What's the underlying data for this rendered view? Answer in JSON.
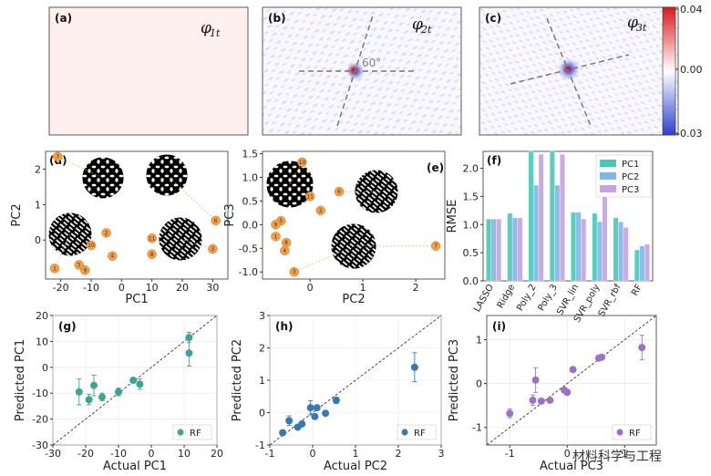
{
  "heatmaps": {
    "panels": [
      {
        "label": "(a)",
        "symbol": "φ",
        "sub": "1t"
      },
      {
        "label": "(b)",
        "symbol": "φ",
        "sub": "2t",
        "angle_label": "60°"
      },
      {
        "label": "(c)",
        "symbol": "φ",
        "sub": "3t"
      }
    ],
    "colorbar": {
      "max": "0.04",
      "mid": "0.00",
      "min": "-0.03",
      "colors": [
        "#d7191c",
        "#ffffff",
        "#2c3ecf"
      ]
    }
  },
  "chart_data": [
    {
      "id": "d",
      "type": "scatter",
      "label": "(d)",
      "xlabel": "PC1",
      "ylabel": "PC2",
      "xlim": [
        -25,
        35
      ],
      "ylim": [
        -1.1,
        2.5
      ],
      "xticks": [
        "-20",
        "-10",
        "0",
        "10",
        "20",
        "30"
      ],
      "yticks": [
        "2",
        "1",
        "0"
      ],
      "points": [
        {
          "id": "7",
          "x": -21,
          "y": 2.35
        },
        {
          "id": "6",
          "x": 31,
          "y": 0.55
        },
        {
          "id": "2",
          "x": -5,
          "y": 0.2
        },
        {
          "id": "10",
          "x": -10,
          "y": -0.15
        },
        {
          "id": "11",
          "x": 10,
          "y": 0.05
        },
        {
          "id": "3",
          "x": 30,
          "y": -0.25
        },
        {
          "id": "4",
          "x": -3,
          "y": -0.45
        },
        {
          "id": "8",
          "x": 10,
          "y": -0.4
        },
        {
          "id": "1",
          "x": -22,
          "y": -0.8
        },
        {
          "id": "5",
          "x": -14,
          "y": -0.7
        },
        {
          "id": "9",
          "x": -12,
          "y": -0.85
        }
      ]
    },
    {
      "id": "e",
      "type": "scatter",
      "label": "(e)",
      "xlabel": "PC2",
      "ylabel": "PC3",
      "xlim": [
        -0.9,
        2.55
      ],
      "ylim": [
        -1.15,
        1.55
      ],
      "xticks": [
        "0",
        "1",
        "2"
      ],
      "yticks": [
        "1.5",
        "1.0",
        "0.5",
        "0.0",
        "-0.5",
        "-1.0"
      ],
      "points": [
        {
          "id": "10",
          "x": -0.15,
          "y": 1.32
        },
        {
          "id": "6",
          "x": 0.55,
          "y": 0.7
        },
        {
          "id": "11",
          "x": 0.0,
          "y": 0.6
        },
        {
          "id": "2",
          "x": 0.2,
          "y": 0.3
        },
        {
          "id": "5",
          "x": -0.55,
          "y": 0.08
        },
        {
          "id": "9",
          "x": -0.65,
          "y": 0.0
        },
        {
          "id": "1",
          "x": -0.65,
          "y": -0.25
        },
        {
          "id": "8",
          "x": -0.45,
          "y": -0.38
        },
        {
          "id": "4",
          "x": -0.48,
          "y": -0.55
        },
        {
          "id": "3",
          "x": -0.3,
          "y": -1.0
        },
        {
          "id": "7",
          "x": 2.38,
          "y": -0.45
        }
      ]
    },
    {
      "id": "f",
      "type": "bar",
      "label": "(f)",
      "ylabel": "RMSE",
      "ylim": [
        0,
        2.3
      ],
      "yticks": [
        "0.0",
        "0.5",
        "1.0",
        "1.5",
        "2.0"
      ],
      "categories": [
        "LASSO",
        "Ridge",
        "Poly_2",
        "Poly_3",
        "SVR_lin",
        "SVR_poly",
        "SVR_rbf",
        "RF"
      ],
      "series": [
        {
          "name": "PC1",
          "color": "#48c9b8",
          "values": [
            1.1,
            1.2,
            2.3,
            2.3,
            1.22,
            1.2,
            1.12,
            0.55
          ]
        },
        {
          "name": "PC2",
          "color": "#7fb6e6",
          "values": [
            1.1,
            1.12,
            1.7,
            1.7,
            1.22,
            1.05,
            1.05,
            0.62
          ]
        },
        {
          "name": "PC3",
          "color": "#c6a3e0",
          "values": [
            1.1,
            1.12,
            2.25,
            2.25,
            1.1,
            1.62,
            0.95,
            0.65
          ]
        }
      ]
    },
    {
      "id": "g",
      "type": "scatter",
      "label": "(g)",
      "xlabel": "Actual PC1",
      "ylabel": "Predicted PC1",
      "xlim": [
        -30,
        20
      ],
      "ylim": [
        -30,
        20
      ],
      "xticks": [
        "-30",
        "-20",
        "-10",
        "0",
        "10",
        "20"
      ],
      "yticks": [
        "20",
        "10",
        "0",
        "-10",
        "-20",
        "-30"
      ],
      "legend": "RF",
      "color": "#3aa592",
      "points": [
        {
          "x": -22,
          "y": -9.5,
          "err": 5
        },
        {
          "x": -19,
          "y": -12.5,
          "err": 2
        },
        {
          "x": -17.5,
          "y": -7,
          "err": 4
        },
        {
          "x": -15,
          "y": -11.5,
          "err": 1.5
        },
        {
          "x": -10,
          "y": -9.5,
          "err": 1.5
        },
        {
          "x": -5.5,
          "y": -5,
          "err": 1
        },
        {
          "x": -3.5,
          "y": -6.5,
          "err": 2
        },
        {
          "x": 11.5,
          "y": 11.5,
          "err": 2
        },
        {
          "x": 11.5,
          "y": 5.5,
          "err": 5
        }
      ]
    },
    {
      "id": "h",
      "type": "scatter",
      "label": "(h)",
      "xlabel": "Actual PC2",
      "ylabel": "Predicted PC2",
      "xlim": [
        -1,
        3
      ],
      "ylim": [
        -1,
        3
      ],
      "xticks": [
        "-1",
        "0",
        "1",
        "2",
        "3"
      ],
      "yticks": [
        "3",
        "2",
        "1",
        "0",
        "-1"
      ],
      "legend": "RF",
      "color": "#3a78b0",
      "points": [
        {
          "x": -0.7,
          "y": -0.62,
          "err": 0.06
        },
        {
          "x": -0.55,
          "y": -0.25,
          "err": 0.15
        },
        {
          "x": -0.35,
          "y": -0.45,
          "err": 0.05
        },
        {
          "x": -0.25,
          "y": -0.35,
          "err": 0.05
        },
        {
          "x": -0.05,
          "y": 0.15,
          "err": 0.22
        },
        {
          "x": 0.05,
          "y": -0.12,
          "err": 0.05
        },
        {
          "x": 0.1,
          "y": 0.15,
          "err": 0.05
        },
        {
          "x": 0.3,
          "y": -0.02,
          "err": 0.05
        },
        {
          "x": 0.55,
          "y": 0.38,
          "err": 0.1
        },
        {
          "x": 2.38,
          "y": 1.4,
          "err": 0.45
        }
      ]
    },
    {
      "id": "i",
      "type": "scatter",
      "label": "(i)",
      "xlabel": "Actual PC3",
      "ylabel": "Predicted PC3",
      "xlim": [
        -1.4,
        1.55
      ],
      "ylim": [
        -1.4,
        1.55
      ],
      "xticks": [
        "-1",
        "0",
        "1"
      ],
      "yticks": [
        "1",
        "0",
        "-1"
      ],
      "legend": "RF",
      "color": "#9b72c6",
      "points": [
        {
          "x": -1.0,
          "y": -0.68,
          "err": 0.1
        },
        {
          "x": -0.6,
          "y": -0.38,
          "err": 0.12
        },
        {
          "x": -0.55,
          "y": 0.08,
          "err": 0.28
        },
        {
          "x": -0.45,
          "y": -0.4,
          "err": 0.05
        },
        {
          "x": -0.3,
          "y": -0.38,
          "err": 0.05
        },
        {
          "x": -0.05,
          "y": -0.15,
          "err": 0.05
        },
        {
          "x": 0.0,
          "y": -0.2,
          "err": 0.05
        },
        {
          "x": 0.1,
          "y": 0.32,
          "err": 0.05
        },
        {
          "x": 0.55,
          "y": 0.58,
          "err": 0.05
        },
        {
          "x": 0.6,
          "y": 0.6,
          "err": 0.05
        },
        {
          "x": 1.3,
          "y": 0.82,
          "err": 0.28
        }
      ]
    }
  ],
  "watermark": "材料科学与工程"
}
